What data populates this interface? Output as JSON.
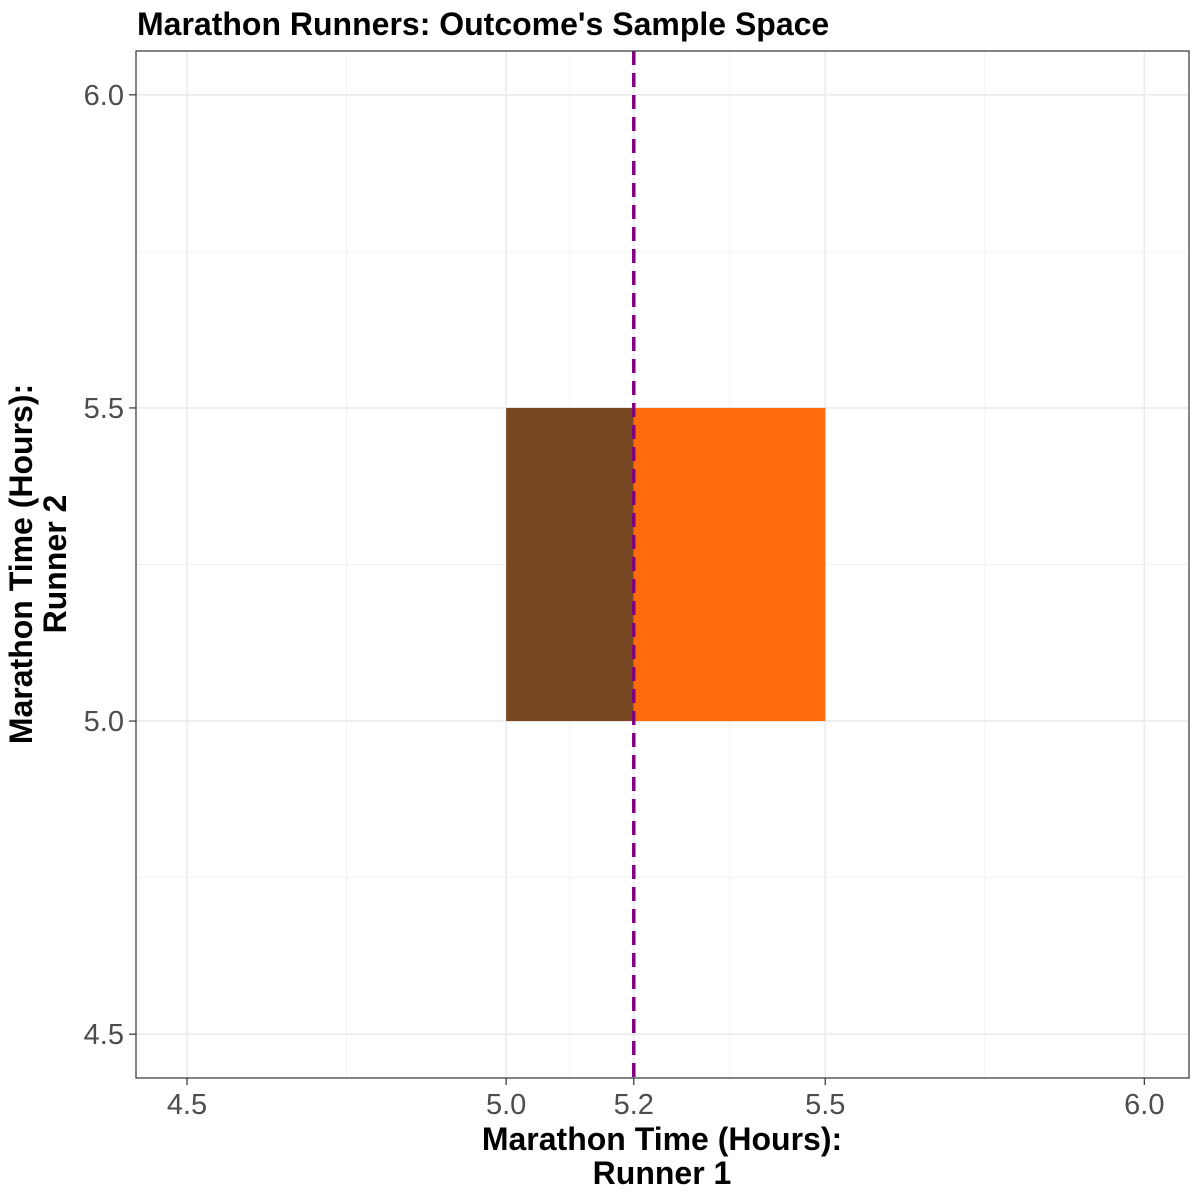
{
  "chart_data": {
    "type": "area",
    "title": "Marathon Runners: Outcome's Sample Space",
    "xlabel": [
      "Marathon Time (Hours):",
      "Runner 1"
    ],
    "ylabel": [
      "Marathon Time (Hours):",
      "Runner 2"
    ],
    "xlim": [
      4.42,
      6.07
    ],
    "ylim": [
      4.43,
      6.07
    ],
    "x_ticks": [
      {
        "value": 4.5,
        "label": "4.5"
      },
      {
        "value": 5.0,
        "label": "5.0"
      },
      {
        "value": 5.2,
        "label": "5.2"
      },
      {
        "value": 5.5,
        "label": "5.5"
      },
      {
        "value": 6.0,
        "label": "6.0"
      }
    ],
    "y_ticks": [
      {
        "value": 4.5,
        "label": "4.5"
      },
      {
        "value": 5.0,
        "label": "5.0"
      },
      {
        "value": 5.5,
        "label": "5.5"
      },
      {
        "value": 6.0,
        "label": "6.0"
      }
    ],
    "x_minor_grid": [
      4.75,
      5.1,
      5.35,
      5.75
    ],
    "y_minor_grid": [
      4.75,
      5.25,
      5.75
    ],
    "grid": true,
    "regions": [
      {
        "x": [
          5.0,
          5.2
        ],
        "y": [
          5.0,
          5.5
        ],
        "color": "#774822"
      },
      {
        "x": [
          5.2,
          5.5
        ],
        "y": [
          5.0,
          5.5
        ],
        "color": "#ff6a0d"
      }
    ],
    "vline": {
      "x": 5.2,
      "color": "#800080",
      "style": "dashed"
    }
  }
}
